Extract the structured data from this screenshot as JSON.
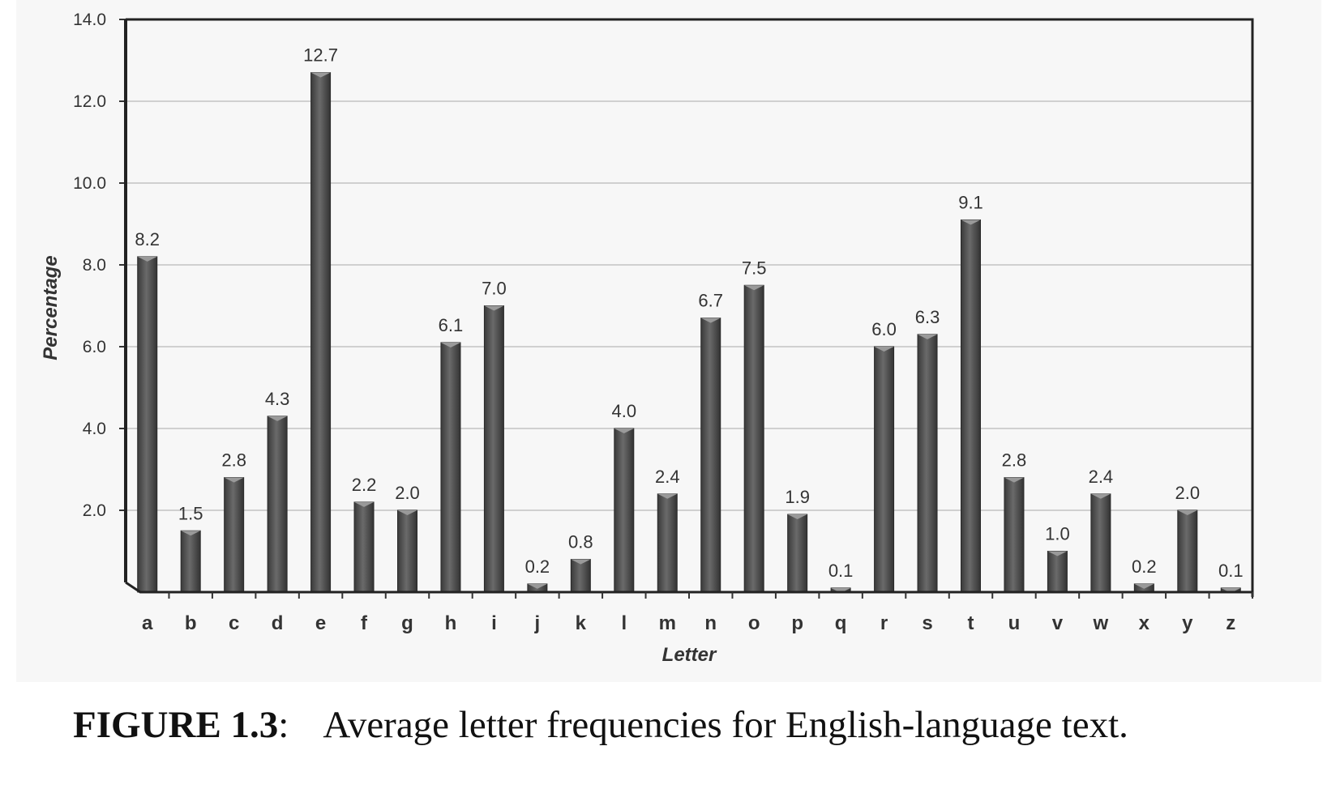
{
  "chart_data": {
    "type": "bar",
    "categories": [
      "a",
      "b",
      "c",
      "d",
      "e",
      "f",
      "g",
      "h",
      "i",
      "j",
      "k",
      "l",
      "m",
      "n",
      "o",
      "p",
      "q",
      "r",
      "s",
      "t",
      "u",
      "v",
      "w",
      "x",
      "y",
      "z"
    ],
    "values": [
      8.2,
      1.5,
      2.8,
      4.3,
      12.7,
      2.2,
      2.0,
      6.1,
      7.0,
      0.2,
      0.8,
      4.0,
      2.4,
      6.7,
      7.5,
      1.9,
      0.1,
      6.0,
      6.3,
      9.1,
      2.8,
      1.0,
      2.4,
      0.2,
      2.0,
      0.1
    ],
    "data_labels": [
      "8.2",
      "1.5",
      "2.8",
      "4.3",
      "12.7",
      "2.2",
      "2.0",
      "6.1",
      "7.0",
      "0.2",
      "0.8",
      "4.0",
      "2.4",
      "6.7",
      "7.5",
      "1.9",
      "0.1",
      "6.0",
      "6.3",
      "9.1",
      "2.8",
      "1.0",
      "2.4",
      "0.2",
      "2.0",
      "0.1"
    ],
    "xlabel": "Letter",
    "ylabel": "Percentage",
    "ylim": [
      0,
      14
    ],
    "yticks": [
      "2.0",
      "4.0",
      "6.0",
      "8.0",
      "10.0",
      "12.0",
      "14.0"
    ],
    "grid": true,
    "bar_color": "#4a4a4a",
    "grid_color": "#d0d0d0"
  },
  "caption": {
    "label": "FIGURE 1.3",
    "separator": ":",
    "text": "Average letter frequencies for English-language text."
  }
}
